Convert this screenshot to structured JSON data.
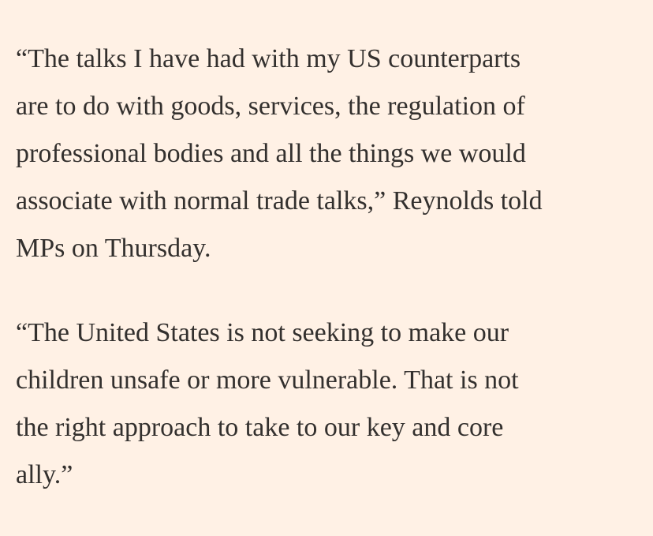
{
  "article": {
    "paragraphs": [
      {
        "lines": [
          "“The talks I have had with my US counterparts",
          "are to do with goods, services, the regulation of",
          "professional bodies and all the things we would",
          "associate with normal trade talks,” Reynolds told",
          "MPs on Thursday."
        ]
      },
      {
        "lines": [
          "“The United States is not seeking to make our",
          "children unsafe or more vulnerable. That is not",
          "the right approach to take to our key and core",
          "ally.”"
        ]
      }
    ]
  }
}
